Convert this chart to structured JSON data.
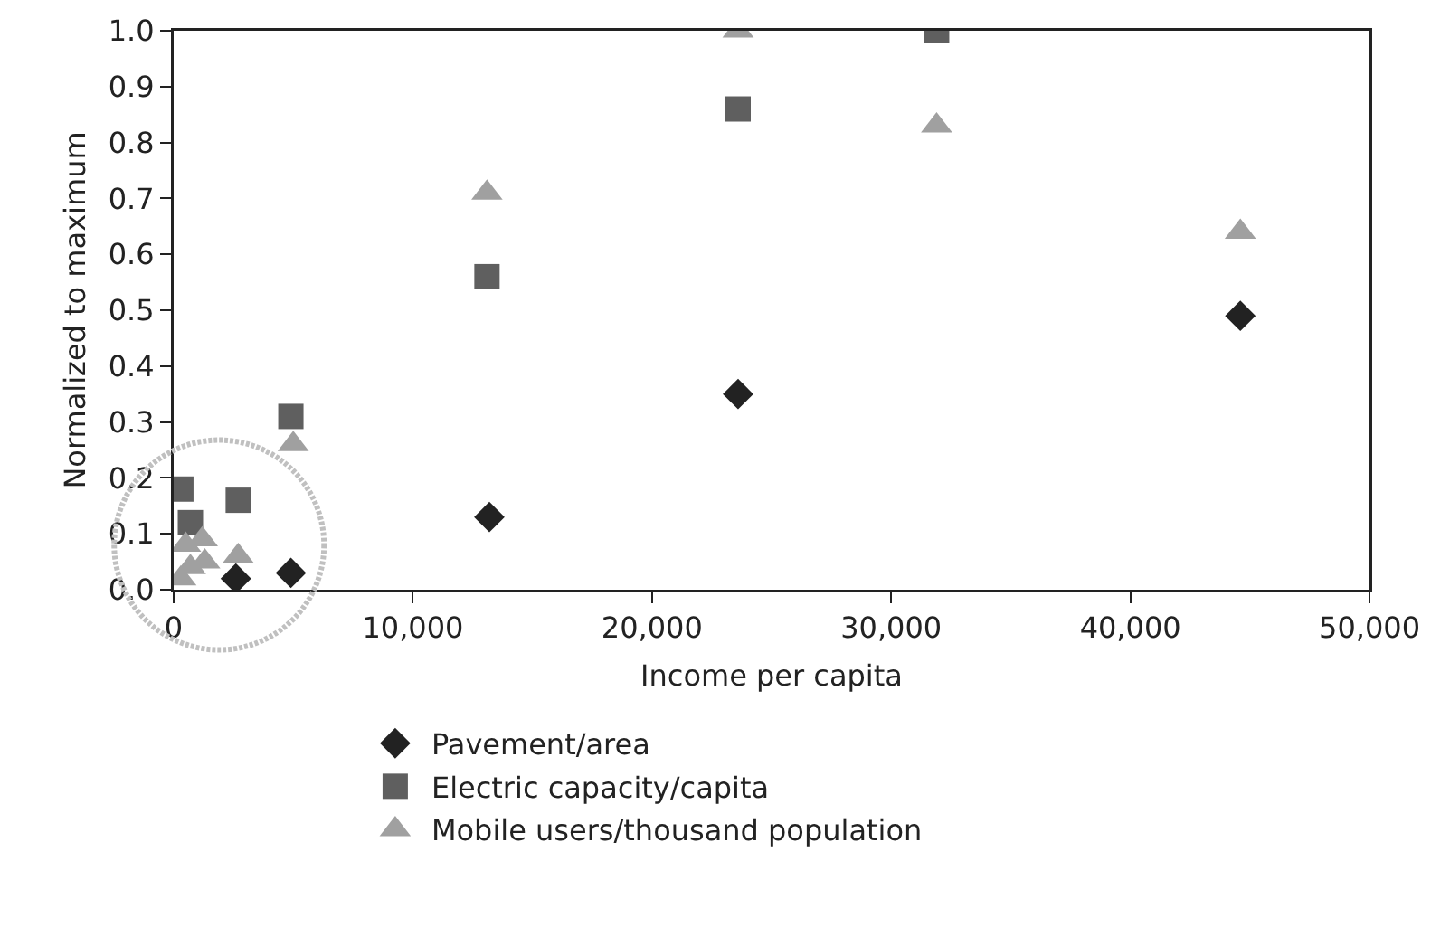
{
  "chart_data": {
    "type": "scatter",
    "xlabel": "Income per capita",
    "ylabel": "Normalized to maximum",
    "xlim": [
      0,
      50000
    ],
    "xticks": [
      {
        "value": 0,
        "label": "0"
      },
      {
        "value": 10000,
        "label": "10,000"
      },
      {
        "value": 20000,
        "label": "20,000"
      },
      {
        "value": 30000,
        "label": "30,000"
      },
      {
        "value": 40000,
        "label": "40,000"
      },
      {
        "value": 50000,
        "label": "50,000"
      }
    ],
    "ylim": [
      0,
      1
    ],
    "yticks": [
      {
        "value": 0,
        "label": "0.0"
      },
      {
        "value": 0.1,
        "label": "0.1"
      },
      {
        "value": 0.2,
        "label": "0.2"
      },
      {
        "value": 0.3,
        "label": "0.3"
      },
      {
        "value": 0.4,
        "label": "0.4"
      },
      {
        "value": 0.5,
        "label": "0.5"
      },
      {
        "value": 0.6,
        "label": "0.6"
      },
      {
        "value": 0.7,
        "label": "0.7"
      },
      {
        "value": 0.8,
        "label": "0.8"
      },
      {
        "value": 0.9,
        "label": "0.9"
      },
      {
        "value": 1,
        "label": "1.0"
      }
    ],
    "grid": false,
    "legend": "bottom",
    "series": [
      {
        "name": "Pavement/area",
        "color": "#222222",
        "marker": "diamond",
        "x": [
          2600,
          4900,
          13200,
          23600,
          44600
        ],
        "values": [
          0.02,
          0.03,
          0.13,
          0.35,
          0.49
        ]
      },
      {
        "name": "Electric capacity/capita",
        "color": "#5f5f5f",
        "marker": "square",
        "x": [
          300,
          700,
          2700,
          4900,
          13100,
          23600,
          31900
        ],
        "values": [
          0.18,
          0.12,
          0.16,
          0.31,
          0.56,
          0.86,
          1.0
        ]
      },
      {
        "name": "Mobile users/thousand population",
        "color": "#a0a0a0",
        "marker": "triangle",
        "x": [
          300,
          500,
          700,
          1200,
          1300,
          2700,
          5000,
          13100,
          23600,
          31900,
          44600
        ],
        "values": [
          0.02,
          0.08,
          0.04,
          0.09,
          0.05,
          0.06,
          0.26,
          0.71,
          1.0,
          0.83,
          0.64
        ]
      }
    ]
  }
}
